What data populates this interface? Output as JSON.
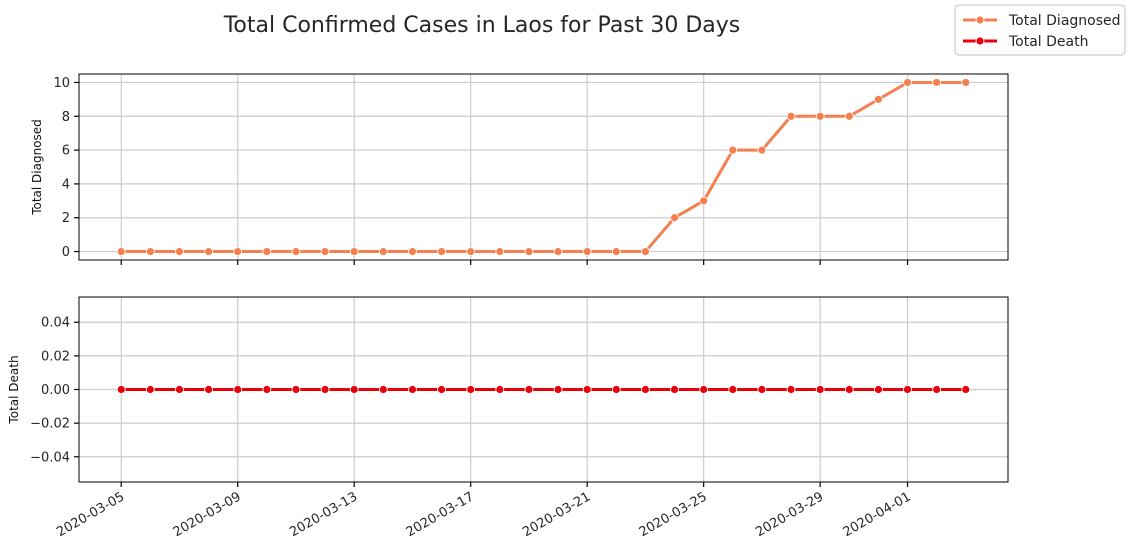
{
  "chart_data": {
    "type": "line",
    "title": "Total Confirmed Cases in Laos for Past 30 Days",
    "legend": {
      "placement": "top-right",
      "entries": [
        "Total Diagnosed",
        "Total Death"
      ]
    },
    "x": [
      "2020-03-05",
      "2020-03-06",
      "2020-03-07",
      "2020-03-08",
      "2020-03-09",
      "2020-03-10",
      "2020-03-11",
      "2020-03-12",
      "2020-03-13",
      "2020-03-14",
      "2020-03-15",
      "2020-03-16",
      "2020-03-17",
      "2020-03-18",
      "2020-03-19",
      "2020-03-20",
      "2020-03-21",
      "2020-03-22",
      "2020-03-23",
      "2020-03-24",
      "2020-03-25",
      "2020-03-26",
      "2020-03-27",
      "2020-03-28",
      "2020-03-29",
      "2020-03-30",
      "2020-03-31",
      "2020-04-01",
      "2020-04-02",
      "2020-04-03"
    ],
    "xticks": [
      "2020-03-05",
      "2020-03-09",
      "2020-03-13",
      "2020-03-17",
      "2020-03-21",
      "2020-03-25",
      "2020-03-29",
      "2020-04-01"
    ],
    "grid": true,
    "subplots": [
      {
        "ylabel": "Total Diagnosed",
        "ylim": [
          -0.5,
          10.5
        ],
        "yticks": [
          "0",
          "2",
          "4",
          "6",
          "8",
          "10"
        ],
        "ytick_values": [
          0,
          2,
          4,
          6,
          8,
          10
        ],
        "series": [
          {
            "name": "Total Diagnosed",
            "color": "#f4804f",
            "values": [
              0,
              0,
              0,
              0,
              0,
              0,
              0,
              0,
              0,
              0,
              0,
              0,
              0,
              0,
              0,
              0,
              0,
              0,
              0,
              2,
              3,
              6,
              6,
              8,
              8,
              8,
              9,
              10,
              10,
              10
            ]
          }
        ]
      },
      {
        "ylabel": "Total Death",
        "ylim": [
          -0.055,
          0.055
        ],
        "yticks": [
          "−0.04",
          "−0.02",
          "0.00",
          "0.02",
          "0.04"
        ],
        "ytick_values": [
          -0.04,
          -0.02,
          0,
          0.02,
          0.04
        ],
        "series": [
          {
            "name": "Total Death",
            "color": "#e8000b",
            "values": [
              0,
              0,
              0,
              0,
              0,
              0,
              0,
              0,
              0,
              0,
              0,
              0,
              0,
              0,
              0,
              0,
              0,
              0,
              0,
              0,
              0,
              0,
              0,
              0,
              0,
              0,
              0,
              0,
              0,
              0
            ]
          }
        ]
      }
    ]
  }
}
